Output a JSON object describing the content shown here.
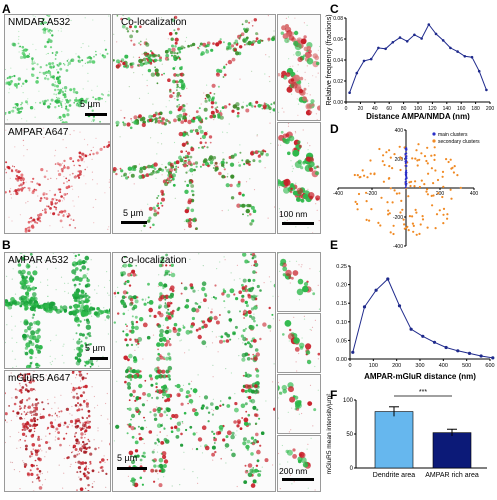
{
  "panels": {
    "A": {
      "letter": "A",
      "img1_label": "NMDAR A532",
      "img2_label": "AMPAR A647",
      "coloc_label": "Co-localization",
      "scale_small": "5 µm",
      "scale_big": "5 µm",
      "scale_zoom": "100 nm"
    },
    "B": {
      "letter": "B",
      "img1_label": "AMPAR A532",
      "img2_label": "mGluR5 A647",
      "coloc_label": "Co-localization",
      "scale_small": "5 µm",
      "scale_big": "5 µm",
      "scale_zoom": "200 nm"
    },
    "C": {
      "letter": "C"
    },
    "D": {
      "letter": "D"
    },
    "E": {
      "letter": "E"
    },
    "F": {
      "letter": "F"
    }
  },
  "colors": {
    "green": "#2db84a",
    "red": "#c8202a",
    "line": "#1f2a8c",
    "bar_light": "#66b7ee",
    "bar_dark": "#0c1a78",
    "scatter": "#f08a24"
  },
  "chart_data": [
    {
      "id": "C",
      "type": "line",
      "xlabel": "Distance AMPA/NMDA (nm)",
      "ylabel": "Relative frequency (fractions)",
      "xlim": [
        0,
        200
      ],
      "ylim": [
        0.0,
        0.09
      ],
      "xticks": [
        "0",
        "20",
        "40",
        "60",
        "80",
        "100",
        "120",
        "140",
        "160",
        "180",
        "200"
      ],
      "yticks": [
        "0.00",
        "0.02",
        "0.04",
        "0.06",
        "0.08"
      ],
      "x": [
        5,
        15,
        25,
        35,
        45,
        55,
        65,
        75,
        85,
        95,
        105,
        115,
        125,
        135,
        145,
        155,
        165,
        175,
        185,
        195
      ],
      "y": [
        0.01,
        0.031,
        0.044,
        0.046,
        0.058,
        0.057,
        0.064,
        0.069,
        0.065,
        0.072,
        0.068,
        0.083,
        0.073,
        0.066,
        0.058,
        0.054,
        0.049,
        0.048,
        0.033,
        0.013
      ]
    },
    {
      "id": "D",
      "type": "scatter",
      "legend": [
        "main clusters",
        "secondary clusters"
      ],
      "legend_position": "top-right",
      "xlim": [
        -400,
        400
      ],
      "ylim": [
        -400,
        400
      ],
      "xticks": [
        "-400",
        "-200",
        "200",
        "400"
      ],
      "yticks": [
        "400",
        "200",
        "-200",
        "-400"
      ]
    },
    {
      "id": "E",
      "type": "line",
      "xlabel": "AMPAR-mGluR distance (nm)",
      "xlim": [
        0,
        600
      ],
      "ylim": [
        0.0,
        0.25
      ],
      "xticks": [
        "0",
        "100",
        "200",
        "300",
        "400",
        "500",
        "600"
      ],
      "yticks": [
        "0.00",
        "0.05",
        "0.10",
        "0.15",
        "0.20",
        "0.25"
      ],
      "x": [
        12,
        62,
        112,
        162,
        212,
        262,
        312,
        362,
        412,
        462,
        512,
        562,
        612
      ],
      "y": [
        0.018,
        0.14,
        0.185,
        0.215,
        0.143,
        0.08,
        0.061,
        0.045,
        0.031,
        0.022,
        0.015,
        0.008,
        0.003
      ]
    },
    {
      "id": "F",
      "type": "bar",
      "ylabel": "mGluR5 mean intensity/µm²",
      "categories": [
        "Dendrite area",
        "AMPAR rich area"
      ],
      "values": [
        83,
        52
      ],
      "errors": [
        7,
        5
      ],
      "ylim": [
        0,
        100
      ],
      "yticks": [
        "0",
        "50",
        "100"
      ],
      "significance": "***"
    }
  ]
}
